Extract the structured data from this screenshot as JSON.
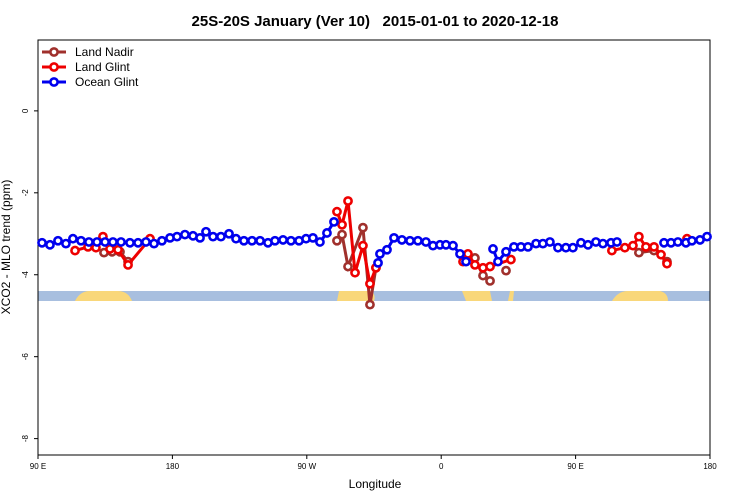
{
  "chart_data": {
    "type": "line",
    "title": "25S-20S January (Ver 10)   2015-01-01 to 2020-12-18",
    "x_label": "Longitude",
    "y_label": "XCO2 - MLO trend (ppm)",
    "xlim": [
      90,
      540
    ],
    "ylim": [
      -8.4,
      1.73
    ],
    "xticks": [
      {
        "value": 90,
        "label": "90 E"
      },
      {
        "value": 180,
        "label": "180"
      },
      {
        "value": 270,
        "label": "90 W"
      },
      {
        "value": 360,
        "label": "0"
      },
      {
        "value": 450,
        "label": "90 E"
      },
      {
        "value": 540,
        "label": "180"
      }
    ],
    "yticks": [
      0,
      -2,
      -4,
      -6,
      -8
    ],
    "legend": "top-left",
    "series": [
      {
        "name": "Land Nadir",
        "color": "#a0302c",
        "x": [
          134.2,
          139.6,
          144.9,
          150.3,
          null,
          290.2,
          293.6,
          297.6,
          307.6,
          312.3,
          316.3,
          null,
          382.6,
          388.0,
          392.7,
          null,
          403.4,
          null,
          492.4,
          502.5,
          511.2
        ],
        "values": [
          -3.46,
          -3.44,
          -3.44,
          -3.68,
          null,
          -3.17,
          -3.02,
          -3.8,
          -2.85,
          -4.73,
          -3.83,
          null,
          -3.59,
          -4.02,
          -4.15,
          null,
          -3.9,
          null,
          -3.46,
          -3.41,
          -3.68
        ]
      },
      {
        "name": "Land Glint",
        "color": "#ee0000",
        "x": [
          114.8,
          123.5,
          128.8,
          133.5,
          138.2,
          143.6,
          150.3,
          165.0,
          null,
          290.2,
          293.6,
          297.6,
          302.3,
          307.6,
          312.3,
          316.3,
          null,
          374.6,
          377.9,
          382.6,
          388.0,
          392.7,
          406.7,
          null,
          474.3,
          483.0,
          488.4,
          492.4,
          497.1,
          502.5,
          507.2,
          511.2,
          null,
          524.6
        ],
        "values": [
          -3.41,
          -3.32,
          -3.34,
          -3.07,
          -3.37,
          -3.39,
          -3.76,
          -3.12,
          null,
          -2.46,
          -2.78,
          -2.2,
          -3.95,
          -3.29,
          -4.22,
          -3.83,
          null,
          -3.68,
          -3.49,
          -3.76,
          -3.83,
          -3.8,
          -3.63,
          null,
          -3.41,
          -3.34,
          -3.29,
          -3.07,
          -3.32,
          -3.32,
          -3.51,
          -3.73,
          null,
          -3.12
        ]
      },
      {
        "name": "Ocean Glint",
        "color": "#0000ee",
        "x": [
          92.7,
          98.0,
          103.4,
          108.7,
          113.4,
          118.8,
          124.1,
          129.5,
          134.9,
          140.2,
          145.6,
          151.6,
          157.0,
          162.3,
          167.7,
          173.0,
          178.4,
          183.1,
          188.4,
          193.8,
          198.5,
          202.5,
          207.2,
          212.5,
          217.9,
          222.6,
          227.9,
          233.3,
          238.7,
          244.0,
          248.7,
          254.1,
          259.4,
          264.8,
          269.5,
          274.1,
          278.8,
          283.5,
          288.2,
          null,
          317.7,
          319.0,
          323.7,
          328.4,
          333.7,
          339.1,
          344.4,
          349.8,
          354.5,
          359.2,
          363.2,
          367.9,
          372.6,
          376.6,
          null,
          394.7,
          398.0,
          403.4,
          408.7,
          413.4,
          418.1,
          423.5,
          428.1,
          432.8,
          438.2,
          443.5,
          448.2,
          453.6,
          458.3,
          463.6,
          468.3,
          473.7,
          477.7,
          null,
          509.2,
          513.9,
          518.5,
          523.9,
          527.9,
          533.3,
          538.0
        ],
        "values": [
          -3.22,
          -3.27,
          -3.17,
          -3.24,
          -3.12,
          -3.17,
          -3.2,
          -3.2,
          -3.2,
          -3.2,
          -3.2,
          -3.22,
          -3.22,
          -3.2,
          -3.24,
          -3.17,
          -3.1,
          -3.07,
          -3.02,
          -3.05,
          -3.1,
          -2.95,
          -3.07,
          -3.07,
          -3.0,
          -3.12,
          -3.17,
          -3.17,
          -3.17,
          -3.22,
          -3.17,
          -3.15,
          -3.17,
          -3.17,
          -3.12,
          -3.1,
          -3.2,
          -2.98,
          -2.71,
          null,
          -3.71,
          -3.49,
          -3.39,
          -3.1,
          -3.15,
          -3.17,
          -3.17,
          -3.2,
          -3.29,
          -3.27,
          -3.27,
          -3.29,
          -3.49,
          -3.68,
          null,
          -3.37,
          -3.68,
          -3.44,
          -3.32,
          -3.32,
          -3.32,
          -3.24,
          -3.24,
          -3.2,
          -3.34,
          -3.34,
          -3.34,
          -3.22,
          -3.27,
          -3.2,
          -3.24,
          -3.22,
          -3.2,
          null,
          -3.22,
          -3.22,
          -3.2,
          -3.22,
          -3.17,
          -3.15,
          -3.07
        ]
      }
    ]
  }
}
